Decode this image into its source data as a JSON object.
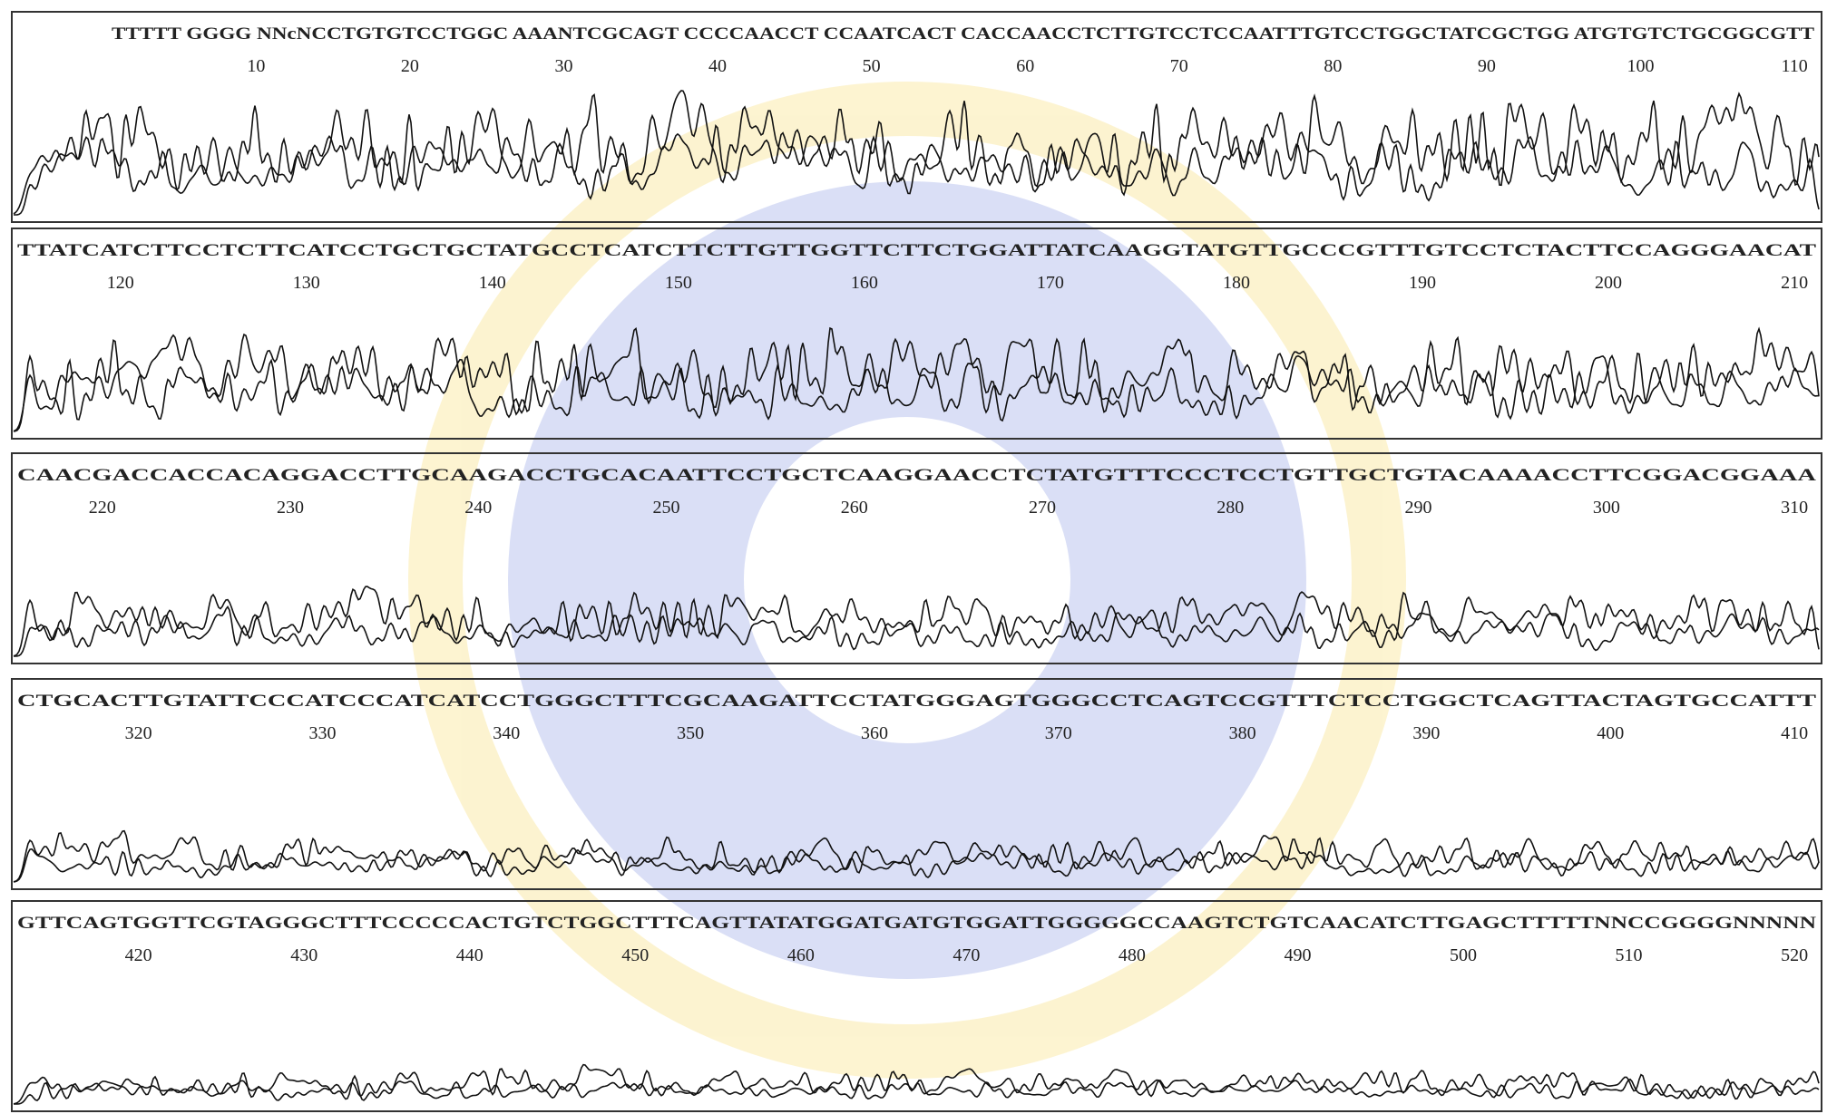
{
  "rows": [
    {
      "sequence": "TTTTT GGGG NNcNCCTGTGTCCTGGC AAANTCGCAGT CCCCAACCT CCAATCACT CACCAACCTCTTGTCCTCCAATTTGTCCTGGCTATCGCTGG ATGTGTCTGCGGCGTT",
      "positions": [
        10,
        20,
        30,
        40,
        50,
        60,
        70,
        80,
        90,
        100,
        110
      ]
    },
    {
      "sequence": "TTATCATCTTCCTCTTCATCCTGCTGCTATGCCTCATCTTCTTGTTGGTTCTTCTGGATTATCAAGGTATGTTGCCCGTTTGTCCTCTACTTCCAGGGAACAT",
      "positions": [
        120,
        130,
        140,
        150,
        160,
        170,
        180,
        190,
        200,
        210
      ]
    },
    {
      "sequence": "CAACGACCACCACAGGACCTTGCAAGACCTGCACAATTCCTGCTCAAGGAACCTCTATGTTTCCCTCCTGTTGCTGTACAAAACCTTCGGACGGAAA",
      "positions": [
        220,
        230,
        240,
        250,
        260,
        270,
        280,
        290,
        300,
        310
      ]
    },
    {
      "sequence": "CTGCACTTGTATTCCCATCCCATCATCCTGGGCTTTCGCAAGATTCCTATGGGAGTGGGCCTCAGTCCGTTTCTCCTGGCTCAGTTACTAGTGCCATTT",
      "positions": [
        320,
        330,
        340,
        350,
        360,
        370,
        380,
        390,
        400,
        410
      ]
    },
    {
      "sequence": "GTTCAGTGGTTCGTAGGGCTTTCCCCCACTGTCTGGCTTTCAGTTATATGGATGATGTGGATTGGGGGCCAAGTCTGTCAACATCTTGAGCTTTTTNNCCGGGGNNNNN",
      "positions": [
        420,
        430,
        440,
        450,
        460,
        470,
        480,
        490,
        500,
        510,
        520
      ]
    }
  ]
}
